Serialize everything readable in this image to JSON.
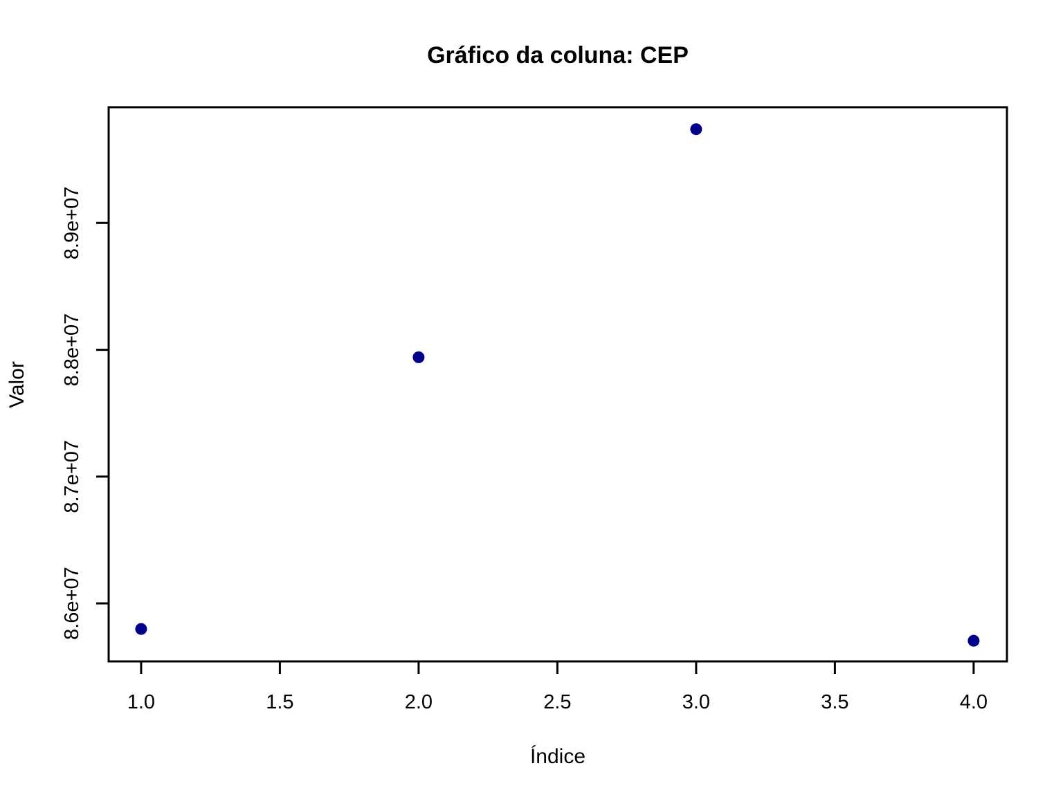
{
  "figure": {
    "background": "#FFFFFF",
    "title": "Gráfico da coluna: CEP",
    "xlabel": "Índice",
    "ylabel": "Valor"
  },
  "chart_data": {
    "type": "scatter",
    "title": "Gráfico da coluna: CEP",
    "xlabel": "Índice",
    "ylabel": "Valor",
    "series": [
      {
        "name": "CEP",
        "x": [
          1,
          2,
          3,
          4
        ],
        "y": [
          85798000,
          87941000,
          89740000,
          85705000
        ]
      }
    ],
    "point_color": "#00008B",
    "axis_color": "#000000",
    "background": "#FFFFFF",
    "xlim": [
      0.883,
      4.12
    ],
    "ylim": [
      85542000,
      89913000
    ],
    "x_ticks": [
      {
        "value": 1.0,
        "label": "1.0"
      },
      {
        "value": 1.5,
        "label": "1.5"
      },
      {
        "value": 2.0,
        "label": "2.0"
      },
      {
        "value": 2.5,
        "label": "2.5"
      },
      {
        "value": 3.0,
        "label": "3.0"
      },
      {
        "value": 3.5,
        "label": "3.5"
      },
      {
        "value": 4.0,
        "label": "4.0"
      }
    ],
    "y_ticks": [
      {
        "value": 86000000,
        "label": "8.6e+07"
      },
      {
        "value": 87000000,
        "label": "8.7e+07"
      },
      {
        "value": 88000000,
        "label": "8.8e+07"
      },
      {
        "value": 89000000,
        "label": "8.9e+07"
      }
    ],
    "grid": false,
    "legend": "none"
  }
}
